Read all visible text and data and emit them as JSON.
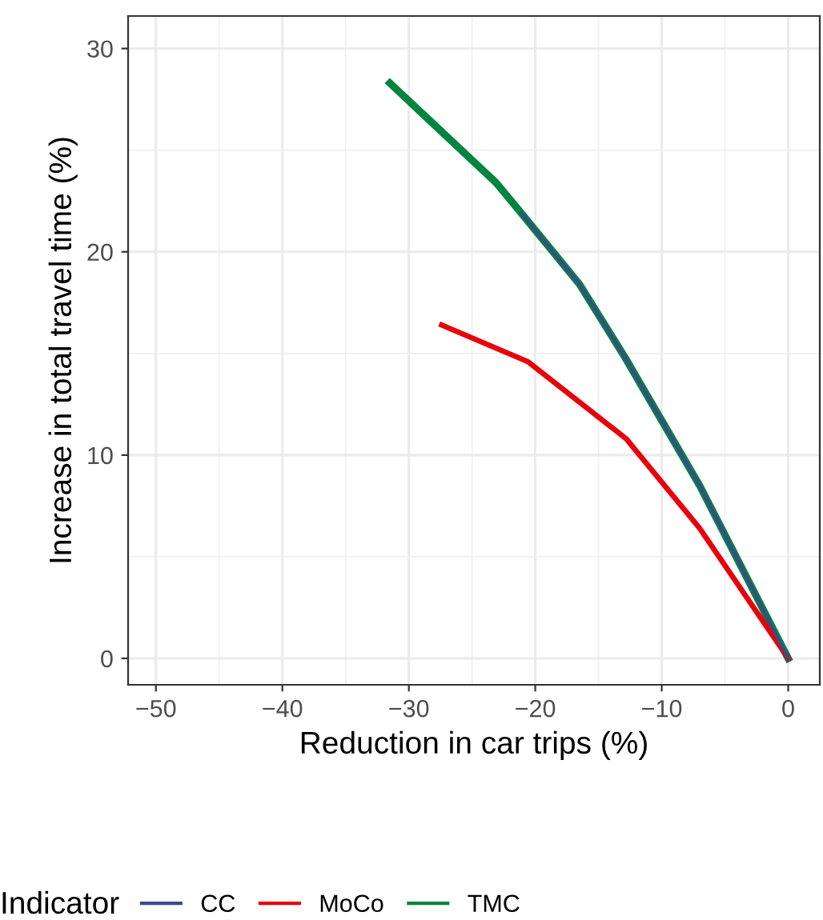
{
  "chart_data": {
    "type": "line",
    "xlabel": "Reduction in car trips (%)",
    "ylabel": "Increase in total travel time (%)",
    "legend_title": "Indicator",
    "legend": "bottom",
    "grid": true,
    "xlim": [
      -52.2,
      2.5
    ],
    "ylim": [
      -1.3,
      31.6
    ],
    "xticks": [
      -50,
      -40,
      -30,
      -20,
      -10,
      0
    ],
    "yticks": [
      0,
      10,
      20,
      30
    ],
    "series": [
      {
        "name": "CC",
        "color": "#3a4a8c",
        "x": [
          -21.1,
          -16.5,
          -12.9,
          -10,
          -7,
          0
        ],
        "values": [
          21.9,
          18.4,
          14.8,
          11.7,
          8.5,
          0
        ]
      },
      {
        "name": "MoCo",
        "color": "#e8000b",
        "x": [
          -27.4,
          -20.6,
          -12.8,
          -7,
          0
        ],
        "values": [
          16.4,
          14.6,
          10.8,
          6.4,
          0
        ]
      },
      {
        "name": "TMC",
        "color": "#00853e",
        "x": [
          -31.5,
          -23.1,
          -21.1,
          -16.5,
          -12.9,
          -10,
          -7,
          0
        ],
        "values": [
          28.3,
          23.4,
          21.9,
          18.4,
          14.8,
          11.7,
          8.5,
          0
        ]
      }
    ]
  }
}
